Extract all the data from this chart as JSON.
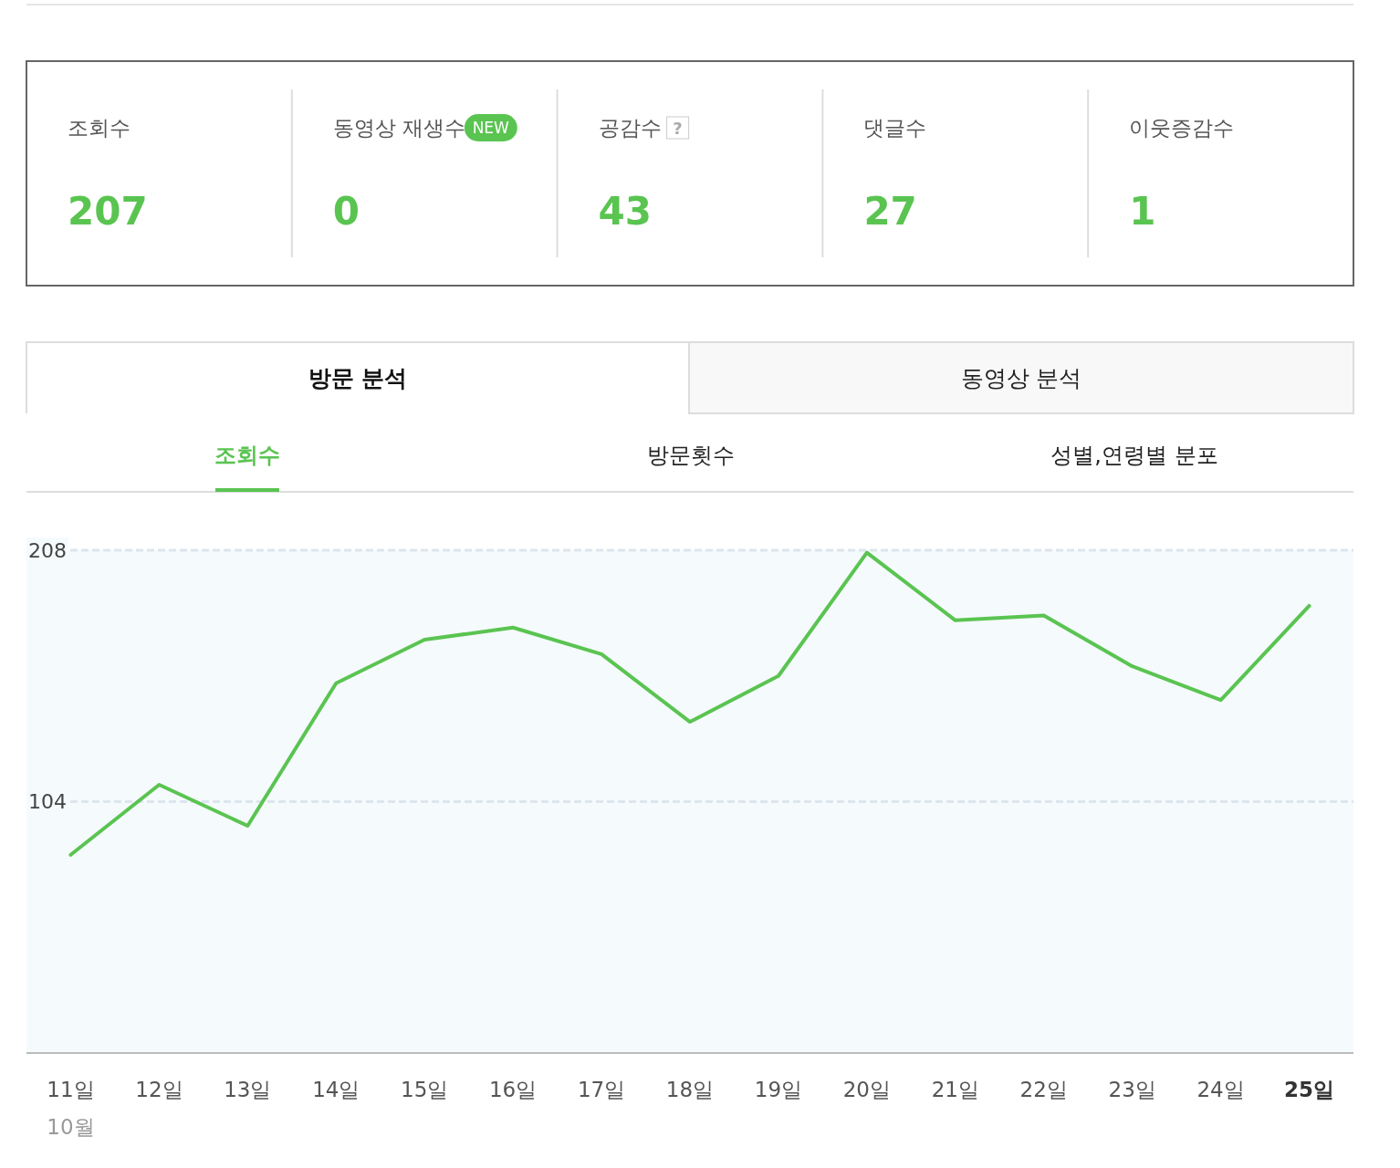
{
  "chart_data": [
    {
      "type": "other",
      "categories": [
        "조회수",
        "동영상 재생수",
        "공감수",
        "댓글수",
        "이웃증감수"
      ],
      "values": [
        207,
        0,
        43,
        27,
        1
      ],
      "data_labels": true,
      "annotations": [
        "NEW",
        "?"
      ],
      "color": "#5ac451"
    },
    {
      "type": "line",
      "categories": [
        "11일",
        "12일",
        "13일",
        "14일",
        "15일",
        "16일",
        "17일",
        "18일",
        "19일",
        "20일",
        "21일",
        "22일",
        "23일",
        "24일",
        "25일"
      ],
      "series": [
        {
          "color": "#5ac451",
          "values": [
            82,
            111,
            94,
            153,
            171,
            176,
            165,
            137,
            156,
            207,
            179,
            181,
            160,
            146,
            185
          ]
        }
      ],
      "ylim": [
        0,
        208
      ],
      "yticks": [
        104,
        208
      ],
      "grid": "y",
      "marker": "none",
      "line_style": "solid",
      "annotations": [
        "방문 분석",
        "동영상 분석",
        "조회수",
        "방문횟수",
        "성별,연령별 분포",
        "10월"
      ]
    }
  ]
}
